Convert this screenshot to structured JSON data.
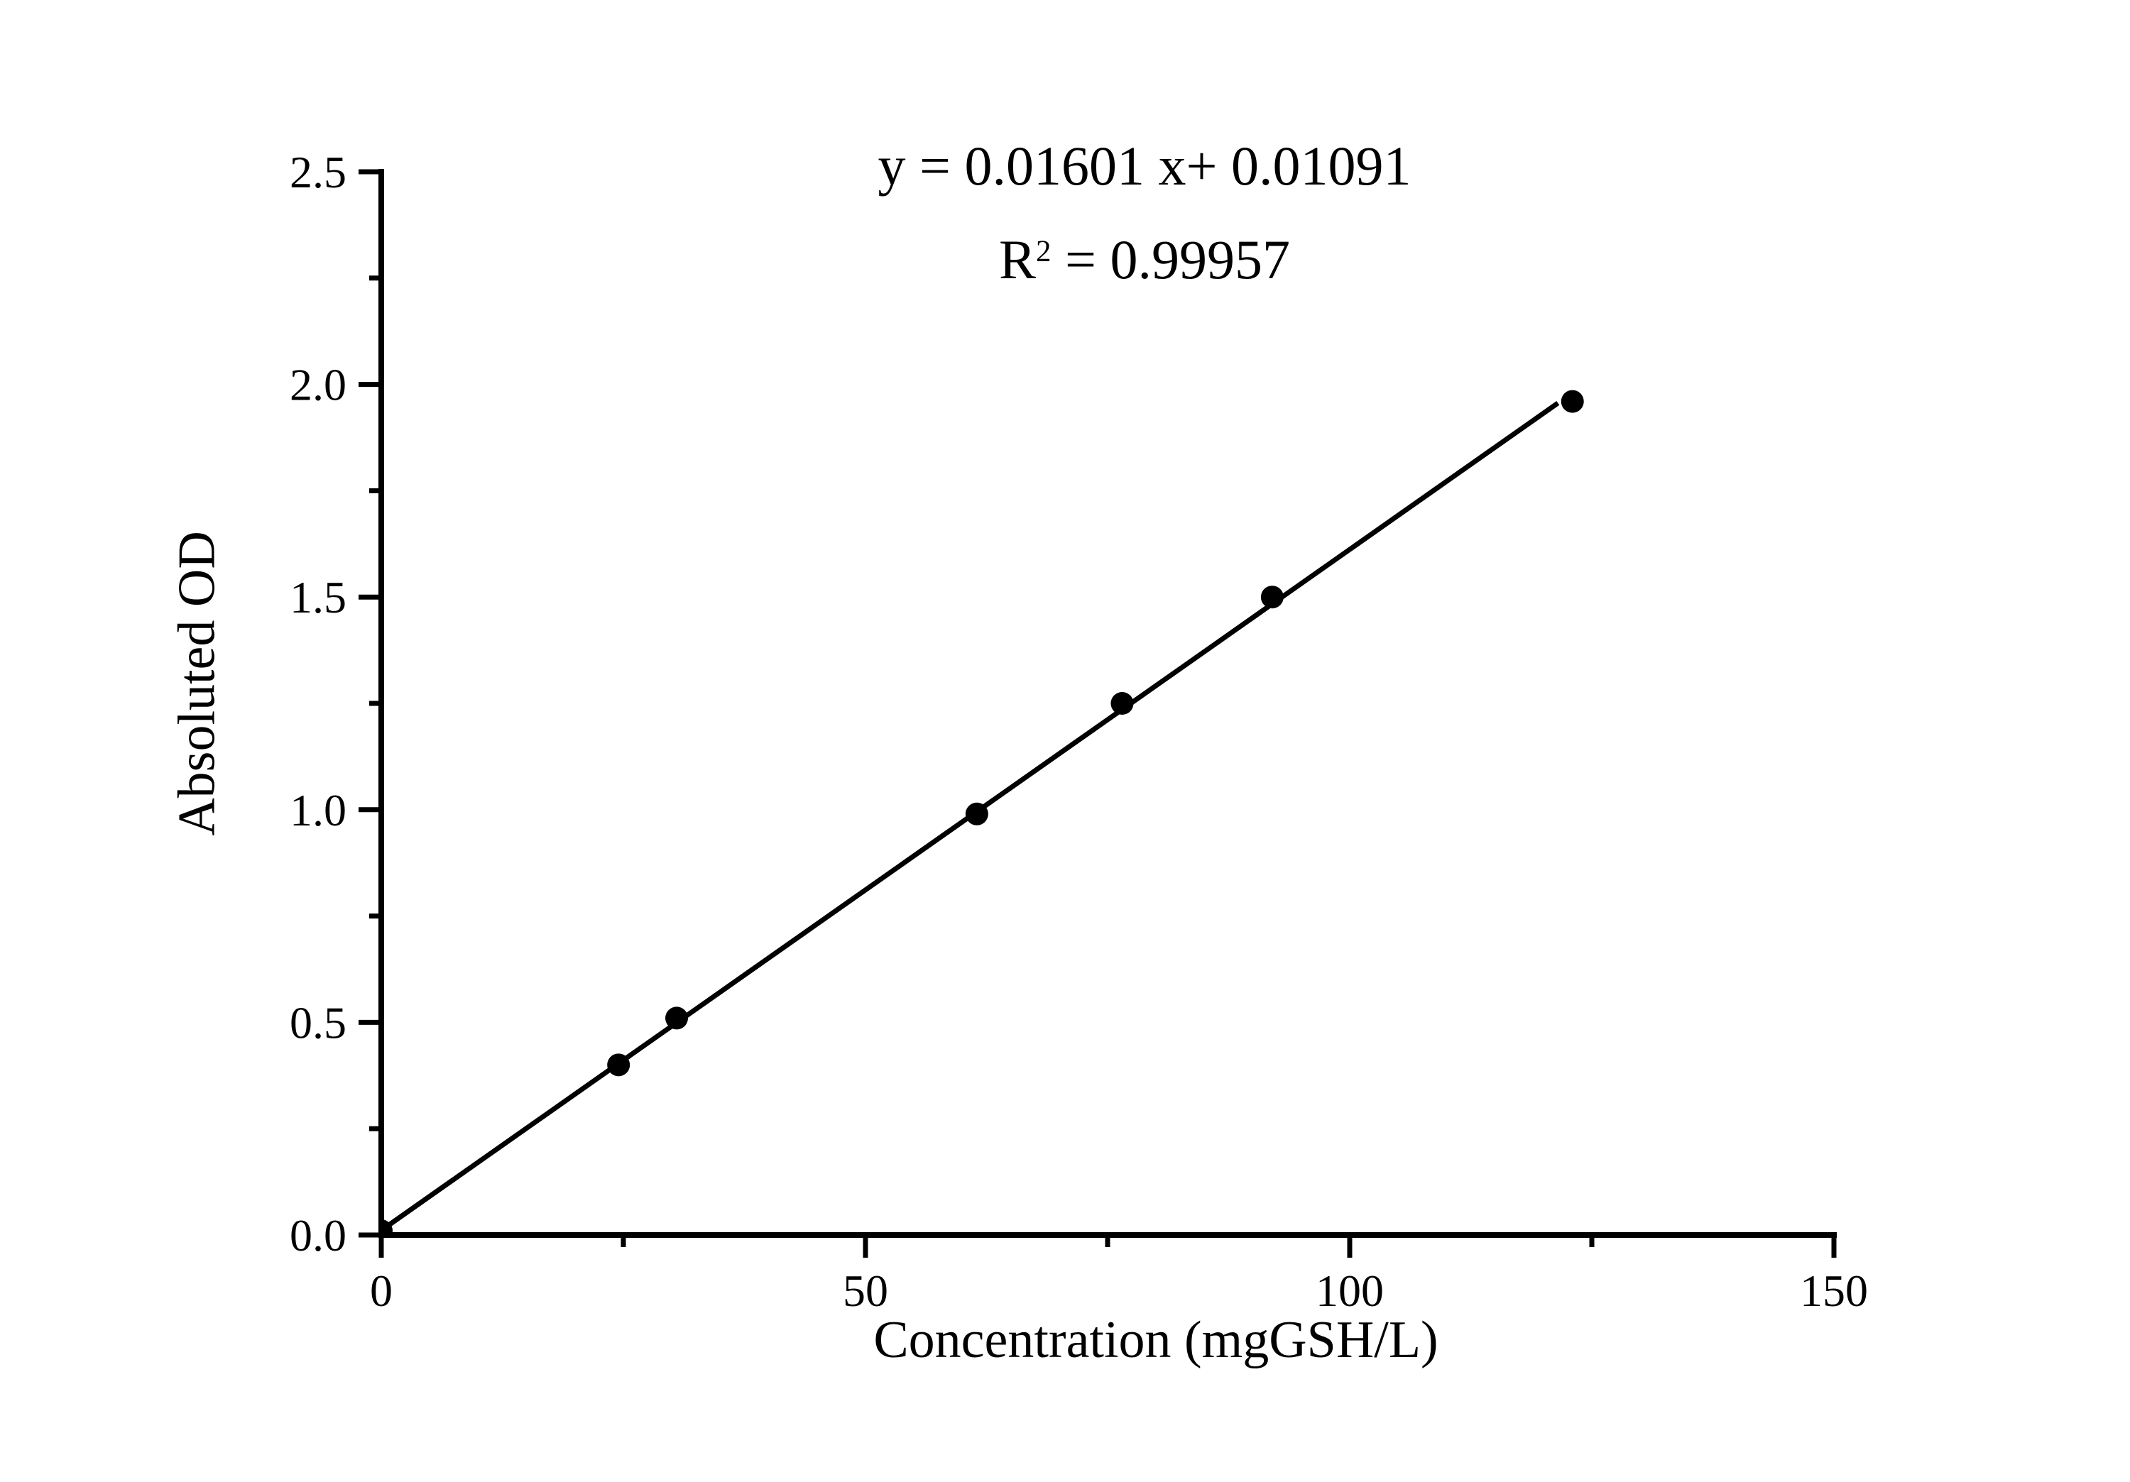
{
  "figure": {
    "background_color": "#ffffff",
    "foreground_color": "#000000"
  },
  "chart_data": {
    "type": "scatter",
    "title": "",
    "xlabel": "Concentration (mgGSH/L)",
    "ylabel": "Absoluted OD",
    "xlim": [
      0,
      150
    ],
    "ylim": [
      0,
      2.5
    ],
    "x_major_ticks": [
      0,
      50,
      100,
      150
    ],
    "x_minor_ticks": [
      25,
      75,
      125
    ],
    "y_major_ticks": [
      0.0,
      0.5,
      1.0,
      1.5,
      2.0,
      2.5
    ],
    "y_minor_ticks": [
      0.25,
      0.75,
      1.25,
      1.75,
      2.25
    ],
    "grid": false,
    "legend": false,
    "marker_color": "#000000",
    "line_color": "#000000",
    "points": [
      {
        "x": 0,
        "y": 0.01
      },
      {
        "x": 24.5,
        "y": 0.4
      },
      {
        "x": 30.5,
        "y": 0.51
      },
      {
        "x": 61.5,
        "y": 0.99
      },
      {
        "x": 76.5,
        "y": 1.25
      },
      {
        "x": 92,
        "y": 1.5
      },
      {
        "x": 123,
        "y": 1.96
      }
    ],
    "fit_line": {
      "slope": 0.01601,
      "intercept": 0.01091,
      "x_start": 0,
      "x_end": 121.5
    },
    "annotation": {
      "equation": "y = 0.01601 x+ 0.01091",
      "r_base": "R",
      "r_exponent": "2",
      "r_rest": " = 0.99957",
      "r_squared_value": 0.99957
    }
  }
}
